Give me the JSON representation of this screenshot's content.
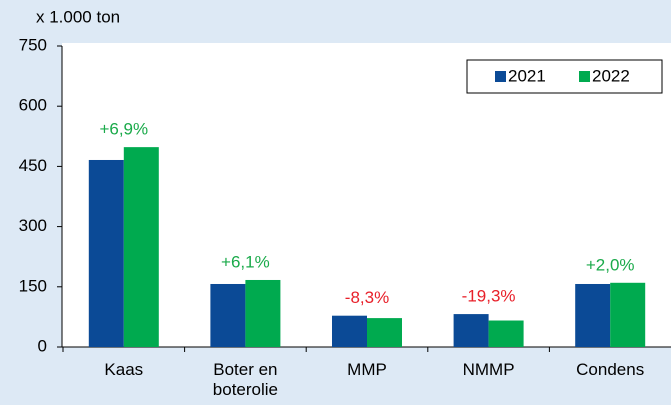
{
  "chart_data": {
    "type": "bar",
    "y_label": "x 1.000 ton",
    "categories": [
      "Kaas",
      "Boter en boterolie",
      "MMP",
      "NMMP",
      "Condens"
    ],
    "series": [
      {
        "name": "2021",
        "color": "#0b4a96",
        "values": [
          466,
          157,
          78,
          82,
          157
        ]
      },
      {
        "name": "2022",
        "color": "#00aa4f",
        "values": [
          498,
          167,
          72,
          66,
          160
        ]
      }
    ],
    "annotations": [
      "+6,9%",
      "+6,1%",
      "-8,3%",
      "-19,3%",
      "+2,0%"
    ],
    "annotation_colors": [
      "#1aaa4a",
      "#1aaa4a",
      "#e8202a",
      "#e8202a",
      "#1aaa4a"
    ],
    "ylim": [
      0,
      750
    ],
    "yticks": [
      0,
      150,
      300,
      450,
      600,
      750
    ],
    "legend": "top-right"
  }
}
